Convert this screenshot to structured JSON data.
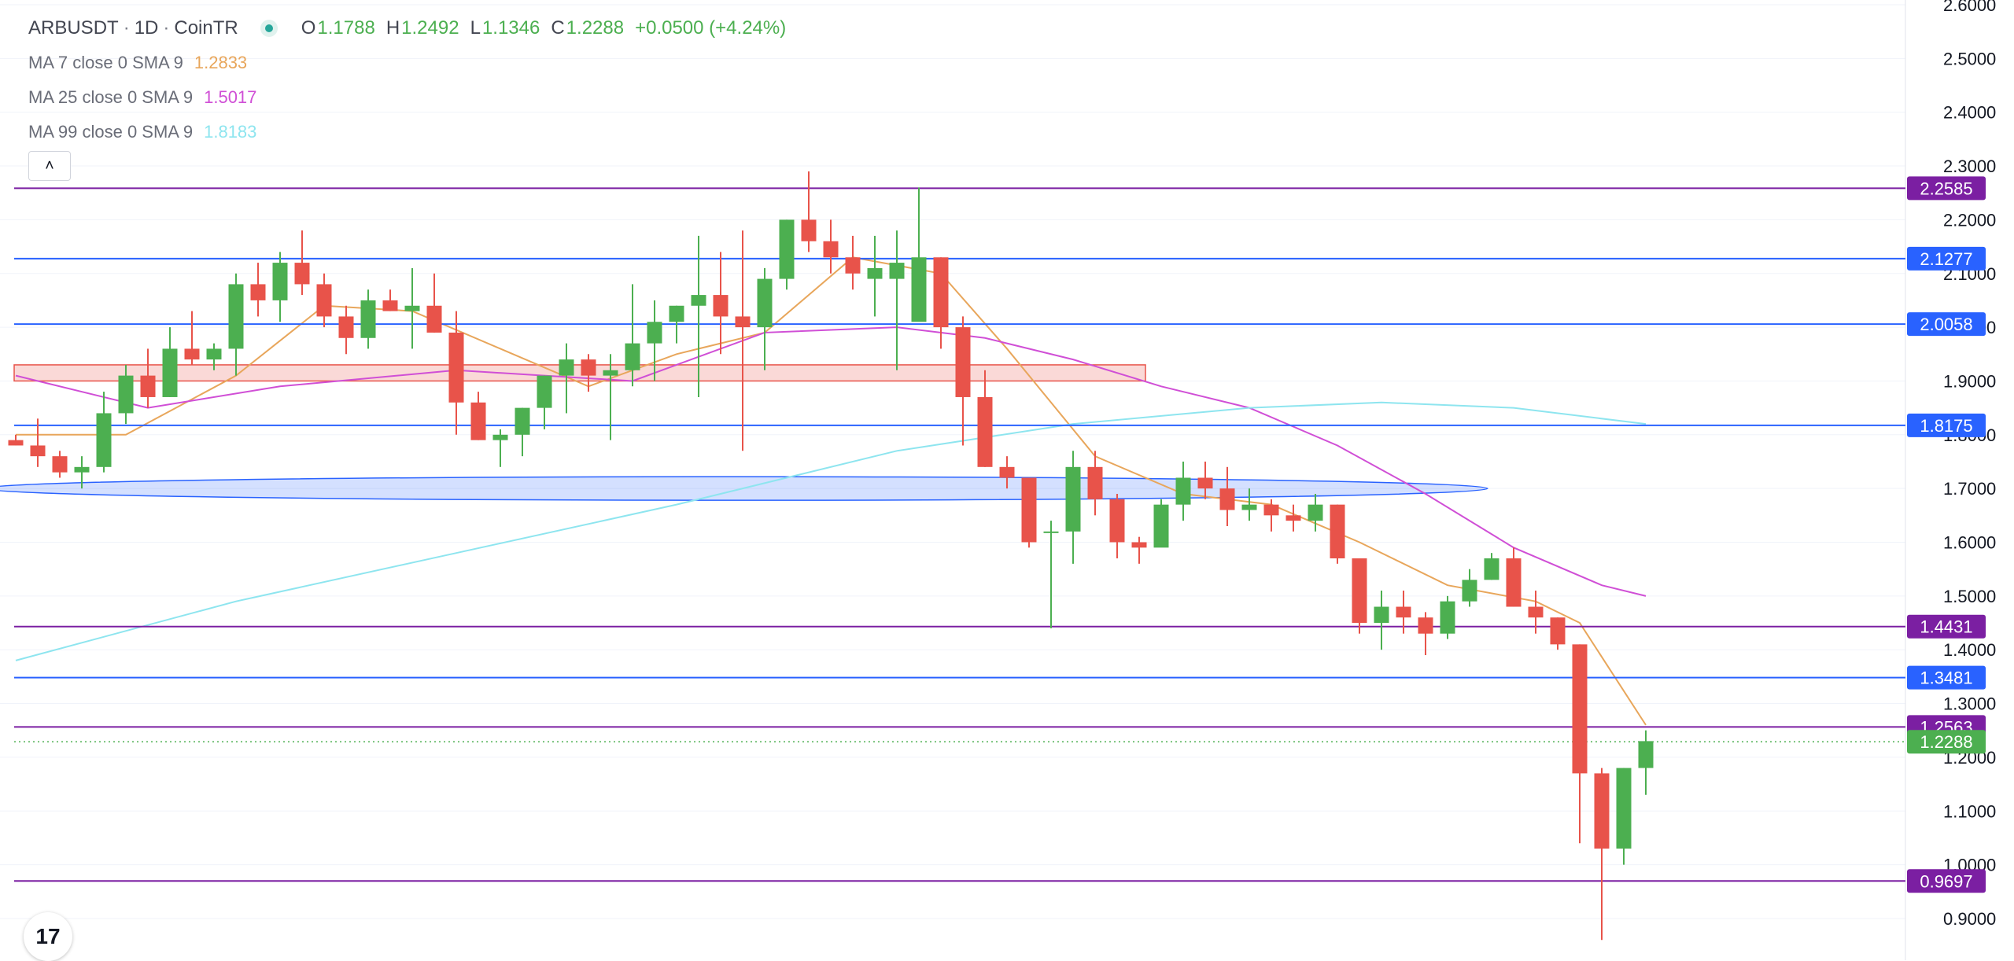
{
  "header": {
    "symbol": "ARBUSDT",
    "interval": "1D",
    "exchange": "CoinTR",
    "sep": "·",
    "ohlc": {
      "o_label": "O",
      "o": "1.1788",
      "h_label": "H",
      "h": "1.2492",
      "l_label": "L",
      "l": "1.1346",
      "c_label": "C",
      "c": "1.2288",
      "change": "+0.0500 (+4.24%)"
    }
  },
  "indicators": [
    {
      "name": "MA 7 close 0 SMA 9",
      "value": "1.2833",
      "color": "#e8a65b"
    },
    {
      "name": "MA 25 close 0 SMA 9",
      "value": "1.5017",
      "color": "#d04fd6"
    },
    {
      "name": "MA 99 close 0 SMA 9",
      "value": "1.8183",
      "color": "#8ee5ef"
    }
  ],
  "collapse_icon": "chevron-up-icon",
  "logo_icon": "tradingview-logo-icon",
  "logo_text": "17",
  "colors": {
    "up": "#4caf50",
    "down": "#e8534a",
    "grid": "#f0f3fa"
  },
  "chart_data": {
    "type": "candlestick",
    "ylim": [
      0.85,
      2.62
    ],
    "y_ticks": [
      "0.9000",
      "1.0000",
      "1.1000",
      "1.2000",
      "1.3000",
      "1.4000",
      "1.5000",
      "1.6000",
      "1.7000",
      "1.8000",
      "1.9000",
      "2.0000",
      "2.1000",
      "2.2000",
      "2.3000",
      "2.4000",
      "2.5000",
      "2.6000"
    ],
    "y_tick_values": [
      0.9,
      1.0,
      1.1,
      1.2,
      1.3,
      1.4,
      1.5,
      1.6,
      1.7,
      1.8,
      1.9,
      2.0,
      2.1,
      2.2,
      2.3,
      2.4,
      2.5,
      2.6
    ],
    "candles": [
      [
        1.79,
        1.8,
        1.78,
        1.78
      ],
      [
        1.78,
        1.83,
        1.74,
        1.76
      ],
      [
        1.76,
        1.77,
        1.72,
        1.73
      ],
      [
        1.73,
        1.76,
        1.7,
        1.74
      ],
      [
        1.74,
        1.88,
        1.73,
        1.84
      ],
      [
        1.84,
        1.93,
        1.82,
        1.91
      ],
      [
        1.91,
        1.96,
        1.85,
        1.87
      ],
      [
        1.87,
        2.0,
        1.87,
        1.96
      ],
      [
        1.96,
        2.03,
        1.93,
        1.94
      ],
      [
        1.94,
        1.97,
        1.92,
        1.96
      ],
      [
        1.96,
        2.1,
        1.91,
        2.08
      ],
      [
        2.08,
        2.12,
        2.02,
        2.05
      ],
      [
        2.05,
        2.14,
        2.01,
        2.12
      ],
      [
        2.12,
        2.18,
        2.06,
        2.08
      ],
      [
        2.08,
        2.1,
        2.0,
        2.02
      ],
      [
        2.02,
        2.04,
        1.95,
        1.98
      ],
      [
        1.98,
        2.07,
        1.96,
        2.05
      ],
      [
        2.05,
        2.07,
        2.03,
        2.03
      ],
      [
        2.03,
        2.11,
        1.96,
        2.04
      ],
      [
        2.04,
        2.1,
        1.99,
        1.99
      ],
      [
        1.99,
        2.03,
        1.8,
        1.86
      ],
      [
        1.86,
        1.88,
        1.79,
        1.79
      ],
      [
        1.79,
        1.81,
        1.74,
        1.8
      ],
      [
        1.8,
        1.85,
        1.76,
        1.85
      ],
      [
        1.85,
        1.91,
        1.81,
        1.91
      ],
      [
        1.91,
        1.97,
        1.84,
        1.94
      ],
      [
        1.94,
        1.95,
        1.88,
        1.91
      ],
      [
        1.91,
        1.95,
        1.79,
        1.92
      ],
      [
        1.92,
        2.08,
        1.89,
        1.97
      ],
      [
        1.97,
        2.05,
        1.9,
        2.01
      ],
      [
        2.01,
        2.04,
        1.97,
        2.04
      ],
      [
        2.04,
        2.17,
        1.87,
        2.06
      ],
      [
        2.06,
        2.14,
        1.95,
        2.02
      ],
      [
        2.02,
        2.18,
        1.77,
        2.0
      ],
      [
        2.0,
        2.11,
        1.92,
        2.09
      ],
      [
        2.09,
        2.2,
        2.07,
        2.2
      ],
      [
        2.2,
        2.29,
        2.14,
        2.16
      ],
      [
        2.16,
        2.2,
        2.1,
        2.13
      ],
      [
        2.13,
        2.17,
        2.07,
        2.1
      ],
      [
        2.09,
        2.17,
        2.02,
        2.11
      ],
      [
        2.09,
        2.18,
        1.92,
        2.12
      ],
      [
        2.01,
        2.26,
        2.02,
        2.13
      ],
      [
        2.13,
        2.13,
        1.96,
        2.0
      ],
      [
        2.0,
        2.02,
        1.78,
        1.87
      ],
      [
        1.87,
        1.92,
        1.74,
        1.74
      ],
      [
        1.74,
        1.76,
        1.7,
        1.72
      ],
      [
        1.72,
        1.72,
        1.59,
        1.6
      ],
      [
        1.62,
        1.64,
        1.44,
        1.62
      ],
      [
        1.62,
        1.77,
        1.56,
        1.74
      ],
      [
        1.74,
        1.77,
        1.65,
        1.68
      ],
      [
        1.68,
        1.69,
        1.57,
        1.6
      ],
      [
        1.6,
        1.61,
        1.56,
        1.59
      ],
      [
        1.59,
        1.68,
        1.6,
        1.67
      ],
      [
        1.67,
        1.75,
        1.64,
        1.72
      ],
      [
        1.72,
        1.75,
        1.68,
        1.7
      ],
      [
        1.7,
        1.74,
        1.63,
        1.66
      ],
      [
        1.66,
        1.7,
        1.64,
        1.67
      ],
      [
        1.67,
        1.68,
        1.62,
        1.65
      ],
      [
        1.65,
        1.67,
        1.62,
        1.64
      ],
      [
        1.64,
        1.69,
        1.62,
        1.67
      ],
      [
        1.67,
        1.67,
        1.56,
        1.57
      ],
      [
        1.57,
        1.57,
        1.43,
        1.45
      ],
      [
        1.45,
        1.51,
        1.4,
        1.48
      ],
      [
        1.48,
        1.51,
        1.43,
        1.46
      ],
      [
        1.46,
        1.47,
        1.39,
        1.43
      ],
      [
        1.43,
        1.5,
        1.42,
        1.49
      ],
      [
        1.49,
        1.55,
        1.48,
        1.53
      ],
      [
        1.53,
        1.58,
        1.53,
        1.57
      ],
      [
        1.57,
        1.59,
        1.48,
        1.48
      ],
      [
        1.48,
        1.51,
        1.43,
        1.46
      ],
      [
        1.46,
        1.46,
        1.4,
        1.41
      ],
      [
        1.41,
        1.41,
        1.04,
        1.17
      ],
      [
        1.17,
        1.18,
        0.86,
        1.03
      ],
      [
        1.03,
        1.18,
        1.0,
        1.18
      ],
      [
        1.18,
        1.25,
        1.13,
        1.23
      ]
    ],
    "moving_averages": [
      {
        "name": "MA 7",
        "color": "#e8a65b",
        "points": [
          [
            0,
            1.8
          ],
          [
            5,
            1.8
          ],
          [
            10,
            1.91
          ],
          [
            14,
            2.04
          ],
          [
            18,
            2.03
          ],
          [
            22,
            1.96
          ],
          [
            26,
            1.89
          ],
          [
            30,
            1.95
          ],
          [
            34,
            1.99
          ],
          [
            38,
            2.13
          ],
          [
            42,
            2.1
          ],
          [
            45,
            1.96
          ],
          [
            49,
            1.76
          ],
          [
            53,
            1.69
          ],
          [
            57,
            1.67
          ],
          [
            61,
            1.6
          ],
          [
            65,
            1.52
          ],
          [
            69,
            1.49
          ],
          [
            71,
            1.45
          ],
          [
            74,
            1.26
          ]
        ]
      },
      {
        "name": "MA 25",
        "color": "#d04fd6",
        "points": [
          [
            0,
            1.91
          ],
          [
            6,
            1.85
          ],
          [
            12,
            1.89
          ],
          [
            20,
            1.92
          ],
          [
            28,
            1.9
          ],
          [
            34,
            1.99
          ],
          [
            40,
            2.0
          ],
          [
            44,
            1.98
          ],
          [
            48,
            1.94
          ],
          [
            52,
            1.89
          ],
          [
            56,
            1.85
          ],
          [
            60,
            1.78
          ],
          [
            64,
            1.69
          ],
          [
            68,
            1.59
          ],
          [
            72,
            1.52
          ],
          [
            74,
            1.5
          ]
        ]
      },
      {
        "name": "MA 99",
        "color": "#8ee5ef",
        "points": [
          [
            0,
            1.38
          ],
          [
            10,
            1.49
          ],
          [
            20,
            1.58
          ],
          [
            30,
            1.67
          ],
          [
            40,
            1.77
          ],
          [
            48,
            1.82
          ],
          [
            56,
            1.85
          ],
          [
            62,
            1.86
          ],
          [
            68,
            1.85
          ],
          [
            74,
            1.82
          ]
        ]
      }
    ],
    "h_lines": [
      {
        "value": 2.2585,
        "label": "2.2585",
        "color": "#7b1fa2"
      },
      {
        "value": 2.1277,
        "label": "2.1277",
        "color": "#2962ff"
      },
      {
        "value": 2.0058,
        "label": "2.0058",
        "color": "#2962ff"
      },
      {
        "value": 1.8175,
        "label": "1.8175",
        "color": "#2962ff"
      },
      {
        "value": 1.4431,
        "label": "1.4431",
        "color": "#7b1fa2"
      },
      {
        "value": 1.3481,
        "label": "1.3481",
        "color": "#2962ff"
      },
      {
        "value": 1.2563,
        "label": "1.2563",
        "color": "#7b1fa2"
      },
      {
        "value": 0.9697,
        "label": "0.9697",
        "color": "#7b1fa2"
      }
    ],
    "current_price": {
      "value": 1.2288,
      "label": "1.2288",
      "color": "#4caf50"
    },
    "zones": [
      {
        "type": "rect",
        "y_top": 1.93,
        "y_bottom": 1.9,
        "x_end": "mid",
        "color": "#e8534a"
      },
      {
        "type": "ellipse",
        "y_center": 1.7,
        "color": "#2962ff"
      }
    ]
  }
}
